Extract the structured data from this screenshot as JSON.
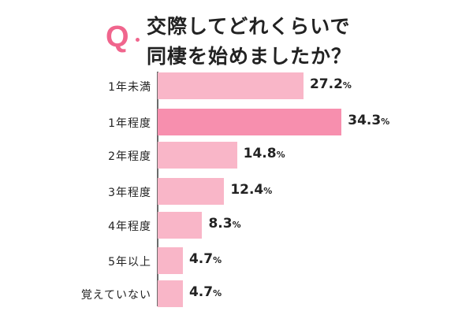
{
  "title": {
    "q_mark": "Q",
    "line1": "交際してどれくらいで",
    "line2": "同棲を始めましたか？"
  },
  "colors": {
    "accent": "#f0658d",
    "bar_default": "#f9b6c8",
    "bar_highlight": "#f78fae",
    "axis": "#6b6b6b",
    "text": "#222222"
  },
  "chart_data": {
    "type": "bar",
    "orientation": "horizontal",
    "title": "交際してどれくらいで同棲を始めましたか？",
    "categories": [
      "1年未満",
      "1年程度",
      "2年程度",
      "3年程度",
      "4年程度",
      "5年以上",
      "覚えていない"
    ],
    "values": [
      27.2,
      34.3,
      14.8,
      12.4,
      8.3,
      4.7,
      4.7
    ],
    "value_labels": [
      "27.2%",
      "34.3%",
      "14.8%",
      "12.4%",
      "8.3%",
      "4.7%",
      "4.7%"
    ],
    "unit": "%",
    "highlight_index": 1,
    "xlabel": "",
    "ylabel": "",
    "grid": false,
    "legend": null
  }
}
